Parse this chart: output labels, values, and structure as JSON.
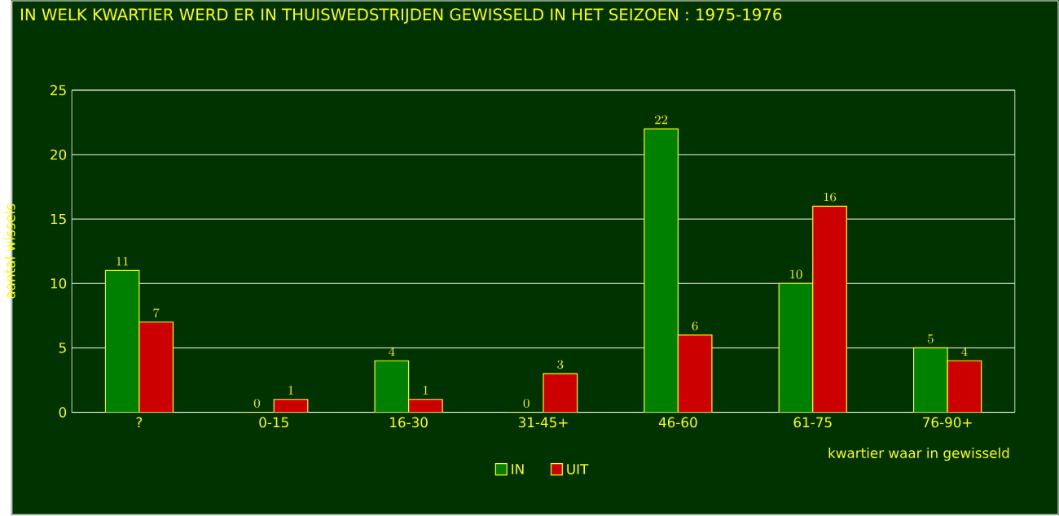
{
  "chart_data": {
    "type": "bar",
    "title": "IN WELK KWARTIER WERD ER IN THUISWEDSTRIJDEN GEWISSELD IN HET SEIZOEN : 1975-1976",
    "xlabel": "kwartier waar in gewisseld",
    "ylabel": "aantal wissels",
    "categories": [
      "?",
      "0-15",
      "16-30",
      "31-45+",
      "46-60",
      "61-75",
      "76-90+"
    ],
    "series": [
      {
        "name": "IN",
        "color": "#008000",
        "values": [
          11,
          0,
          4,
          0,
          22,
          10,
          5
        ]
      },
      {
        "name": "UIT",
        "color": "#cc0000",
        "values": [
          7,
          1,
          1,
          3,
          6,
          16,
          4
        ]
      }
    ],
    "ylim": [
      0,
      25
    ],
    "yticks": [
      0,
      5,
      10,
      15,
      20,
      25
    ],
    "grid": "y",
    "legend": "bottom",
    "data_labels": true
  }
}
